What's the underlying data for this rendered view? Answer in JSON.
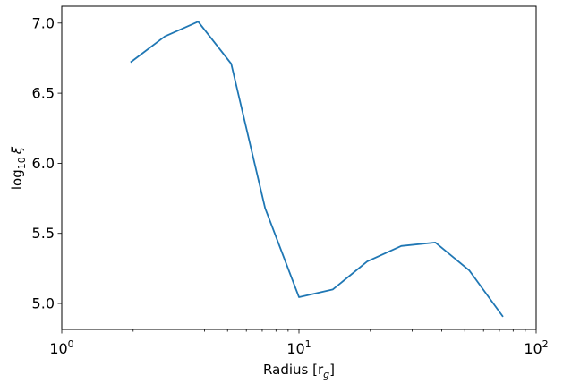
{
  "chart_data": {
    "type": "line",
    "xlabel": "Radius [r",
    "xlabel_sub": "g",
    "xlabel_close": "]",
    "ylabel": "log",
    "ylabel_sub": "10",
    "ylabel_symbol": "ξ",
    "xscale": "log",
    "xlim": [
      1,
      100
    ],
    "ylim": [
      4.815,
      7.12
    ],
    "grid": false,
    "x_ticks": [
      {
        "value": 1,
        "base": "10",
        "exp": "0"
      },
      {
        "value": 10,
        "base": "10",
        "exp": "1"
      },
      {
        "value": 100,
        "base": "10",
        "exp": "2"
      }
    ],
    "y_ticks": [
      {
        "value": 5.0,
        "label": "5.0"
      },
      {
        "value": 5.5,
        "label": "5.5"
      },
      {
        "value": 6.0,
        "label": "6.0"
      },
      {
        "value": 6.5,
        "label": "6.5"
      },
      {
        "value": 7.0,
        "label": "7.0"
      }
    ],
    "series": [
      {
        "color": "#1f77b4",
        "x": [
          1.95,
          2.72,
          3.76,
          5.18,
          7.2,
          10.0,
          13.9,
          19.4,
          27.0,
          37.6,
          52.3,
          72.5
        ],
        "y": [
          6.72,
          6.905,
          7.01,
          6.71,
          5.68,
          5.045,
          5.1,
          5.3,
          5.41,
          5.435,
          5.235,
          4.905
        ]
      }
    ]
  }
}
